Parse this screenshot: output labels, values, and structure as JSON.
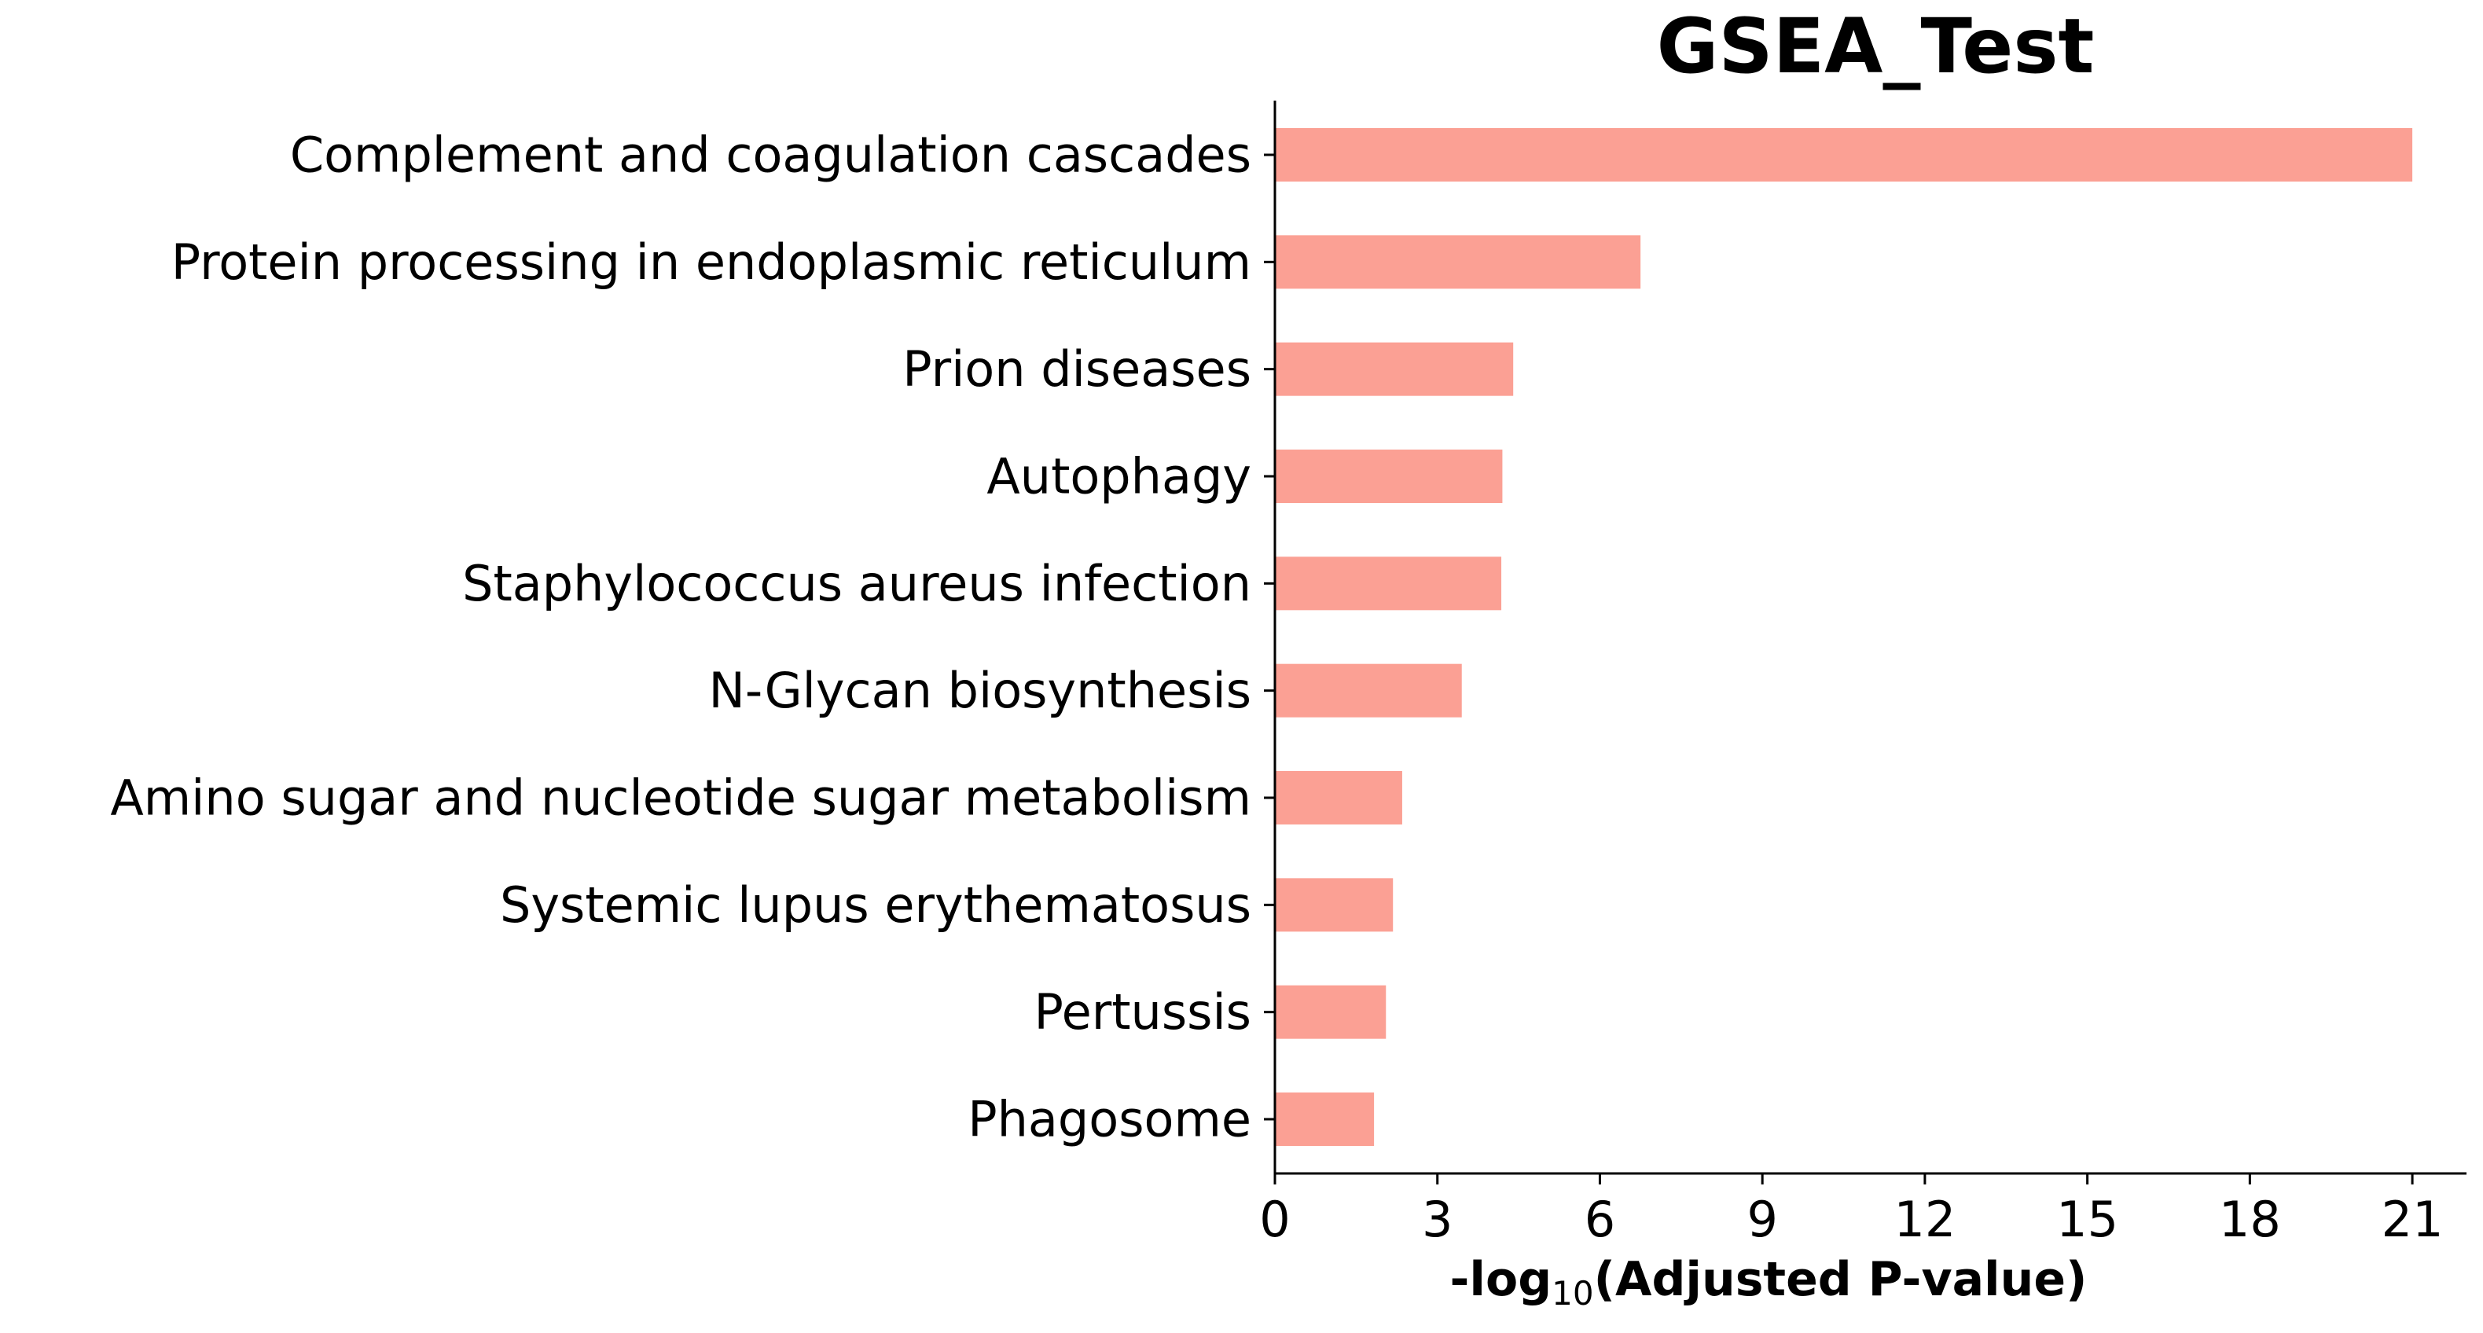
{
  "chart_data": {
    "type": "bar",
    "orientation": "horizontal",
    "title": "GSEA_Test",
    "xlabel_main": "-log",
    "xlabel_sub": "10",
    "xlabel_tail": "(Adjusted P-value)",
    "ylabel": "",
    "categories": [
      "Complement and coagulation cascades",
      "Protein processing in endoplasmic reticulum",
      "Prion diseases",
      "Autophagy",
      "Staphylococcus aureus infection",
      "N-Glycan biosynthesis",
      "Amino sugar and nucleotide sugar metabolism",
      "Systemic lupus erythematosus",
      "Pertussis",
      "Phagosome"
    ],
    "values": [
      21.0,
      6.75,
      4.4,
      4.2,
      4.18,
      3.45,
      2.35,
      2.18,
      2.05,
      1.83
    ],
    "xticks": [
      0,
      3,
      6,
      9,
      12,
      15,
      18,
      21
    ],
    "xlim": [
      0,
      22
    ],
    "bar_color": "#fba094",
    "grid": false,
    "legend": "none"
  }
}
